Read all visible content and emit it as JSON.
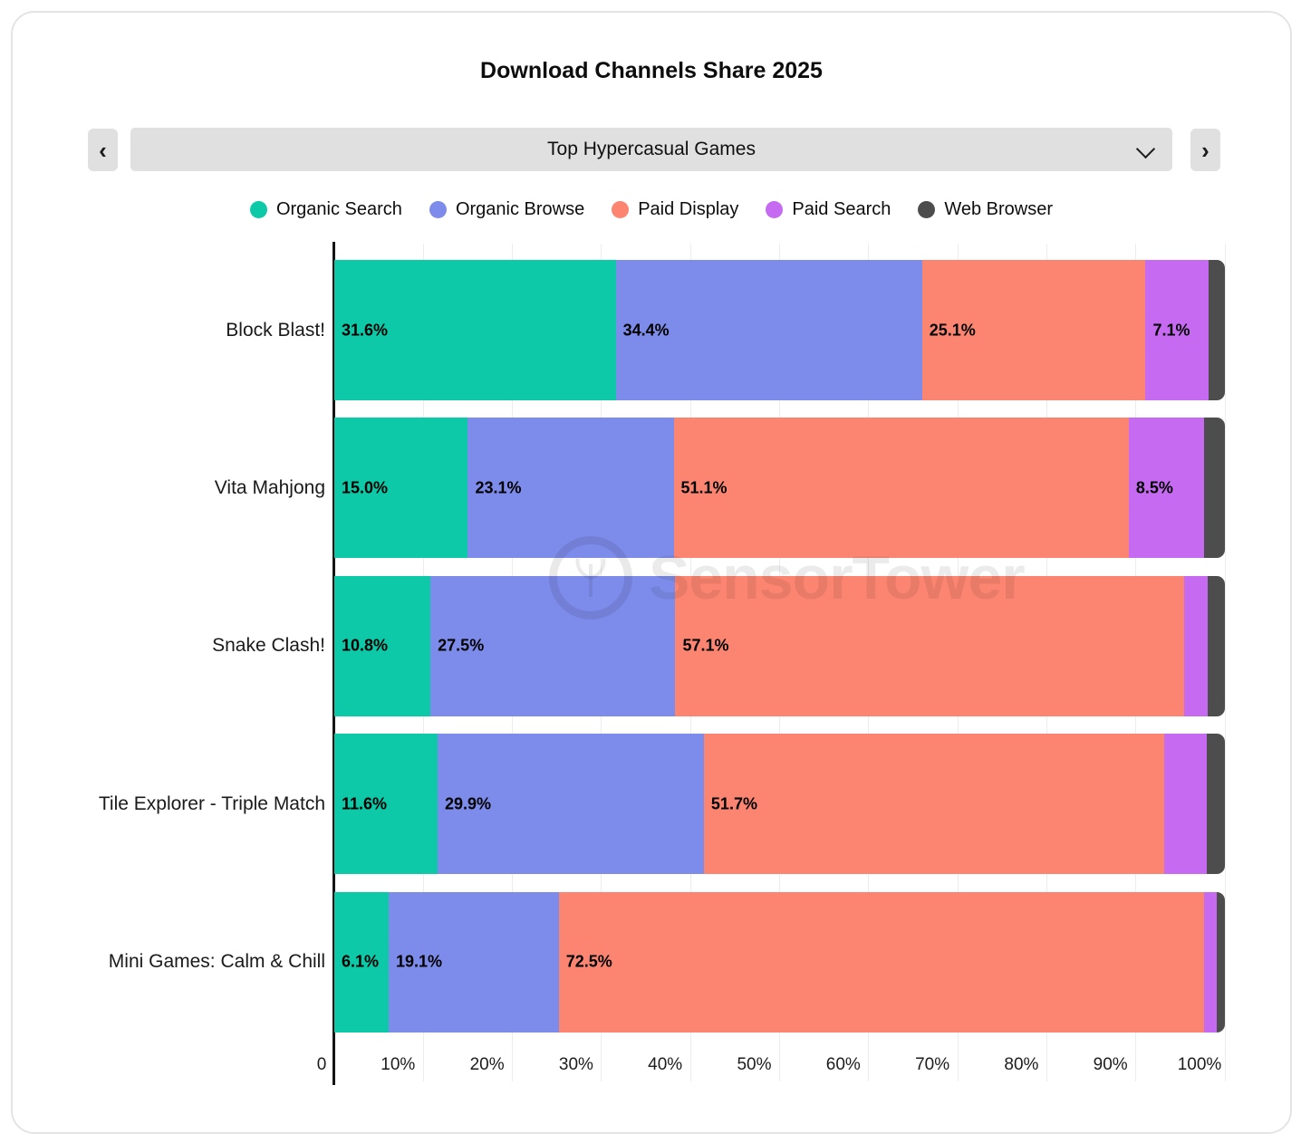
{
  "title": "Download Channels Share 2025",
  "selector": {
    "label": "Top Hypercasual Games",
    "prev_icon": "‹",
    "next_icon": "›",
    "chevron_icon": "chevron-down"
  },
  "watermark": {
    "text": "SensorTower"
  },
  "colors": {
    "organic_search": "#0dc9a8",
    "organic_browse": "#7d8cea",
    "paid_display": "#fc8571",
    "paid_search": "#c76af2",
    "web_browser": "#4d4d4d",
    "control_bg": "#e0e0e0",
    "gridline": "#ececec",
    "axis": "#141414"
  },
  "chart_data": {
    "type": "bar",
    "orientation": "horizontal",
    "stacked": true,
    "unit": "%",
    "title": "Download Channels Share 2025",
    "categories": [
      "Block Blast!",
      "Vita Mahjong",
      "Snake Clash!",
      "Tile Explorer - Triple Match",
      "Mini Games: Calm & Chill"
    ],
    "series": [
      {
        "name": "Organic Search",
        "color": "#0dc9a8",
        "values": [
          31.6,
          15.0,
          10.8,
          11.6,
          6.1
        ]
      },
      {
        "name": "Organic Browse",
        "color": "#7d8cea",
        "values": [
          34.4,
          23.1,
          27.5,
          29.9,
          19.1
        ]
      },
      {
        "name": "Paid Display",
        "color": "#fc8571",
        "values": [
          25.1,
          51.1,
          57.1,
          51.7,
          72.5
        ]
      },
      {
        "name": "Paid Search",
        "color": "#c76af2",
        "values": [
          7.1,
          8.5,
          2.7,
          4.8,
          1.4
        ]
      },
      {
        "name": "Web Browser",
        "color": "#4d4d4d",
        "values": [
          1.8,
          2.3,
          1.9,
          2.0,
          0.9
        ]
      }
    ],
    "label_min_pct": 5,
    "x_axis": {
      "range": [
        0,
        100
      ],
      "ticks": [
        "0",
        "10%",
        "20%",
        "30%",
        "40%",
        "50%",
        "60%",
        "70%",
        "80%",
        "90%",
        "100%"
      ],
      "grid": true
    },
    "legend_position": "top"
  }
}
